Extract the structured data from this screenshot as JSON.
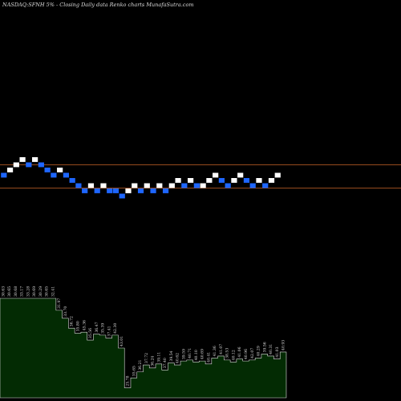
{
  "header": {
    "title": "NASDAQ:SFNH 5% - Closing Daily data Renko charts MunafaSutra.com"
  },
  "chart_data": {
    "type": "renko",
    "title": "NASDAQ:SFNH 5% - Closing Daily data Renko charts MunafaSutra.com",
    "brick_size_percent": 5,
    "colors": {
      "up": "#ffffff",
      "down": "#1e66ff",
      "reference_line": "#c86428",
      "volume_fill": "#032b03",
      "volume_stroke": "#dddddd"
    },
    "reference_levels": {
      "upper": 4.1,
      "lower": 3.8
    },
    "bricks": [
      {
        "x": 1,
        "level": 3,
        "dir": "down"
      },
      {
        "x": 2,
        "level": 4,
        "dir": "up"
      },
      {
        "x": 3,
        "level": 5,
        "dir": "up"
      },
      {
        "x": 4,
        "level": 6,
        "dir": "up"
      },
      {
        "x": 5,
        "level": 5,
        "dir": "down"
      },
      {
        "x": 6,
        "level": 6,
        "dir": "up"
      },
      {
        "x": 7,
        "level": 5,
        "dir": "down"
      },
      {
        "x": 8,
        "level": 4,
        "dir": "down"
      },
      {
        "x": 9,
        "level": 3,
        "dir": "down"
      },
      {
        "x": 10,
        "level": 4,
        "dir": "up"
      },
      {
        "x": 11,
        "level": 3,
        "dir": "down"
      },
      {
        "x": 12,
        "level": 2,
        "dir": "down"
      },
      {
        "x": 13,
        "level": 1,
        "dir": "down"
      },
      {
        "x": 14,
        "level": 0,
        "dir": "down"
      },
      {
        "x": 15,
        "level": 1,
        "dir": "up"
      },
      {
        "x": 16,
        "level": 0,
        "dir": "down"
      },
      {
        "x": 17,
        "level": 1,
        "dir": "up"
      },
      {
        "x": 18,
        "level": 0,
        "dir": "down"
      },
      {
        "x": 19,
        "level": 0,
        "dir": "down"
      },
      {
        "x": 20,
        "level": -1,
        "dir": "down"
      },
      {
        "x": 21,
        "level": 0,
        "dir": "up"
      },
      {
        "x": 22,
        "level": 1,
        "dir": "up"
      },
      {
        "x": 23,
        "level": 0,
        "dir": "down"
      },
      {
        "x": 24,
        "level": 1,
        "dir": "up"
      },
      {
        "x": 25,
        "level": 0,
        "dir": "down"
      },
      {
        "x": 26,
        "level": 1,
        "dir": "up"
      },
      {
        "x": 27,
        "level": 0,
        "dir": "down"
      },
      {
        "x": 28,
        "level": 1,
        "dir": "up"
      },
      {
        "x": 29,
        "level": 2,
        "dir": "up"
      },
      {
        "x": 30,
        "level": 1,
        "dir": "down"
      },
      {
        "x": 31,
        "level": 2,
        "dir": "up"
      },
      {
        "x": 32,
        "level": 1,
        "dir": "down"
      },
      {
        "x": 33,
        "level": 1,
        "dir": "up"
      },
      {
        "x": 34,
        "level": 2,
        "dir": "up"
      },
      {
        "x": 35,
        "level": 3,
        "dir": "up"
      },
      {
        "x": 36,
        "level": 2,
        "dir": "down"
      },
      {
        "x": 37,
        "level": 1,
        "dir": "down"
      },
      {
        "x": 38,
        "level": 2,
        "dir": "up"
      },
      {
        "x": 39,
        "level": 3,
        "dir": "up"
      },
      {
        "x": 40,
        "level": 2,
        "dir": "down"
      },
      {
        "x": 41,
        "level": 1,
        "dir": "down"
      },
      {
        "x": 42,
        "level": 2,
        "dir": "up"
      },
      {
        "x": 43,
        "level": 1,
        "dir": "down"
      },
      {
        "x": 44,
        "level": 2,
        "dir": "up"
      },
      {
        "x": 45,
        "level": 3,
        "dir": "up"
      }
    ],
    "volume": {
      "x": [
        1,
        2,
        3,
        4,
        5,
        6,
        7,
        8,
        9,
        10,
        11,
        12,
        13,
        14,
        15,
        16,
        17,
        18,
        19,
        20,
        21,
        22,
        23,
        24,
        25,
        26,
        27,
        28,
        29,
        30,
        31,
        32,
        33,
        34,
        35,
        36,
        37,
        38,
        39,
        40,
        41,
        42,
        43,
        44,
        45,
        46
      ],
      "values": [
        100,
        100,
        100,
        100,
        100,
        100,
        100,
        100,
        100,
        88,
        80,
        70,
        65,
        66,
        58,
        64,
        63,
        60,
        63,
        50,
        10,
        20,
        26,
        33,
        30,
        34,
        28,
        35,
        33,
        37,
        38,
        36,
        37,
        34,
        40,
        42,
        38,
        36,
        39,
        37,
        38,
        40,
        44,
        42,
        39,
        46
      ],
      "labels": [
        "30.63",
        "30.65",
        "30.68",
        "33.17",
        "33.28",
        "30.69",
        "30.29",
        "30.65",
        "32.41",
        "31.97",
        "33.70",
        "36.72",
        "35.80",
        "45.36",
        "35.56",
        "36.47",
        "35.39",
        "37.41",
        "42.30",
        "43.01",
        "25.78",
        "35.65",
        "36.21",
        "37.72",
        "36.24",
        "39.11",
        "37.40",
        "39.54",
        "40.62",
        "39.59",
        "40.71",
        "40.10",
        "40.69",
        "40.41",
        "41.36",
        "41.07",
        "38.53",
        "40.12",
        "41.06",
        "40.96",
        "42.07",
        "40.29",
        "39.56",
        "40.31",
        "41.03",
        "40.93"
      ]
    }
  }
}
